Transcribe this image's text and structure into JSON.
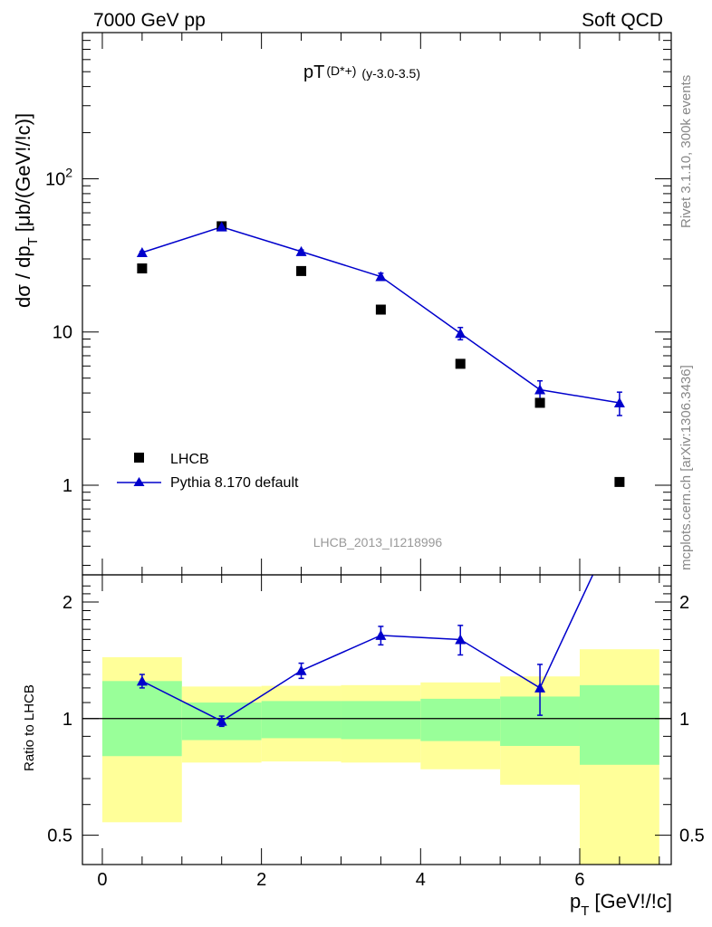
{
  "header": {
    "left": "7000 GeV pp",
    "right": "Soft QCD"
  },
  "side": {
    "rivet": "Rivet 3.1.10,  300k events",
    "source": "mcplots.cern.ch [arXiv:1306.3436]"
  },
  "colors": {
    "data": "#000000",
    "mc": "#0000cc",
    "band_inner": "#99ff99",
    "band_outer": "#ffff99"
  },
  "chart_data": [
    {
      "type": "scatter",
      "title_main": "pT",
      "title_sub": "(D*+)",
      "title_tail": "(y-3.0-3.5)",
      "ylabel_main": "dσ / dp",
      "ylabel_sub": "T",
      "ylabel_tail": "[μb/(GeV!/!c)]",
      "analysis_label": "LHCB_2013_I1218996",
      "log_y": true,
      "xlim": [
        -0.25,
        7.15
      ],
      "ylim": [
        0.26,
        900
      ],
      "y_tick_labels": [
        "1",
        "10",
        "10^2"
      ],
      "x": [
        0.5,
        1.5,
        2.5,
        3.5,
        4.5,
        5.5,
        6.5
      ],
      "series": [
        {
          "name": "LHCB",
          "marker": "square",
          "values": [
            26.0,
            49.0,
            25.0,
            14.0,
            6.2,
            3.45,
            1.05
          ]
        },
        {
          "name": "Pythia 8.170 default",
          "marker": "triangle",
          "values": [
            33.0,
            48.5,
            33.5,
            23.0,
            9.8,
            4.2,
            3.45
          ],
          "err_low": [
            0.6,
            0.8,
            0.8,
            1.2,
            0.9,
            0.6,
            0.6
          ],
          "err_high": [
            0.6,
            0.8,
            0.8,
            1.2,
            0.9,
            0.6,
            0.6
          ]
        }
      ],
      "legend_position": "bottom-left"
    },
    {
      "type": "line",
      "ylabel": "Ratio to LHCB",
      "xlabel_main": "p",
      "xlabel_sub": "T",
      "xlabel_tail": "[GeV!/!c]",
      "log_y": true,
      "xlim": [
        -0.25,
        7.15
      ],
      "ylim": [
        0.42,
        2.35
      ],
      "x_tick_labels": [
        "0",
        "2",
        "4",
        "6"
      ],
      "y_tick_labels": [
        "0.5",
        "1",
        "2"
      ],
      "reference_line": 1,
      "bands": [
        {
          "x_lo": 0,
          "x_hi": 1,
          "inner": [
            0.8,
            1.25
          ],
          "outer": [
            0.54,
            1.44
          ]
        },
        {
          "x_lo": 1,
          "x_hi": 2,
          "inner": [
            0.88,
            1.1
          ],
          "outer": [
            0.77,
            1.21
          ]
        },
        {
          "x_lo": 2,
          "x_hi": 3,
          "inner": [
            0.89,
            1.11
          ],
          "outer": [
            0.775,
            1.215
          ]
        },
        {
          "x_lo": 3,
          "x_hi": 4,
          "inner": [
            0.885,
            1.11
          ],
          "outer": [
            0.77,
            1.22
          ]
        },
        {
          "x_lo": 4,
          "x_hi": 5,
          "inner": [
            0.875,
            1.125
          ],
          "outer": [
            0.74,
            1.24
          ]
        },
        {
          "x_lo": 5,
          "x_hi": 6,
          "inner": [
            0.85,
            1.14
          ],
          "outer": [
            0.675,
            1.285
          ]
        },
        {
          "x_lo": 6,
          "x_hi": 7,
          "inner": [
            0.76,
            1.22
          ],
          "outer": [
            0.41,
            1.51
          ]
        }
      ],
      "series": [
        {
          "name": "Pythia 8.170 default",
          "x": [
            0.5,
            1.5,
            2.5,
            3.5,
            4.5,
            5.5,
            6.5
          ],
          "values": [
            1.25,
            0.985,
            1.33,
            1.64,
            1.6,
            1.2,
            3.3
          ],
          "err_low": [
            0.05,
            0.03,
            0.06,
            0.09,
            0.14,
            0.18,
            0.4
          ],
          "err_high": [
            0.05,
            0.03,
            0.06,
            0.09,
            0.14,
            0.18,
            0.4
          ]
        }
      ]
    }
  ]
}
